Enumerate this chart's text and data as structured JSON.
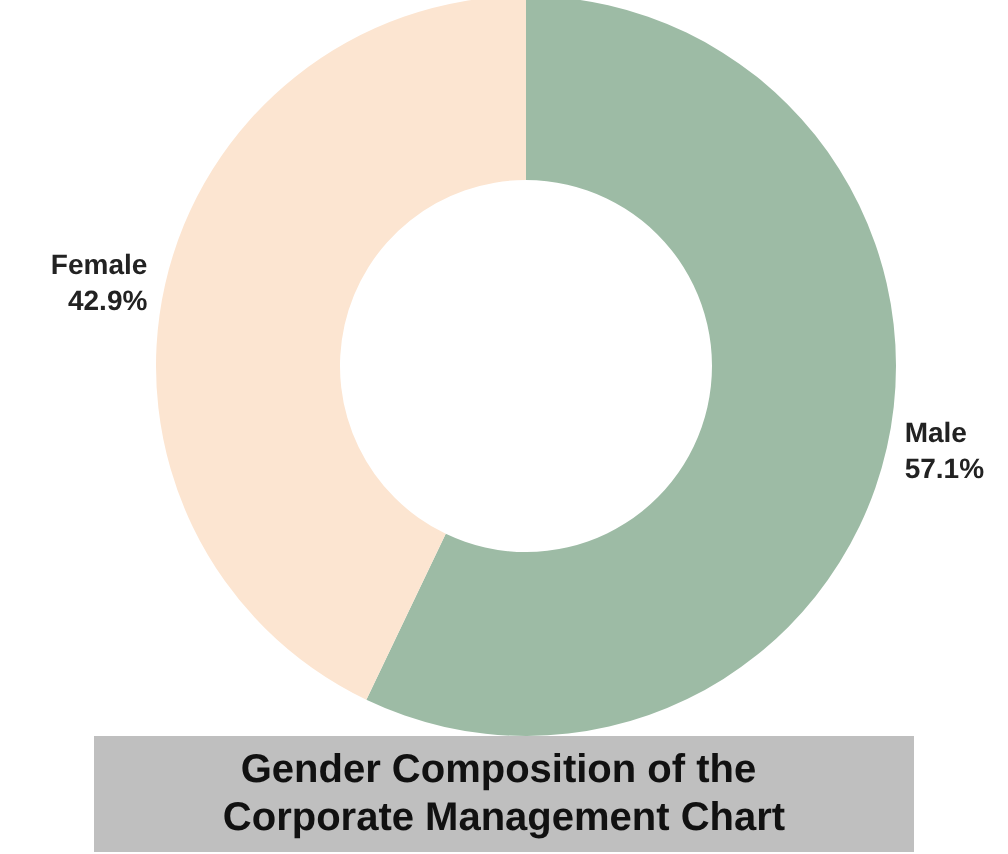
{
  "chart_data": {
    "type": "donut",
    "title": "Gender Composition of the Corporate Management Chart",
    "categories": [
      "Male",
      "Female"
    ],
    "values": [
      57.1,
      42.9
    ],
    "value_labels": [
      "57.1%",
      "42.9%"
    ],
    "colors": [
      "#9dbba5",
      "#fce5d1"
    ],
    "legend": false
  }
}
